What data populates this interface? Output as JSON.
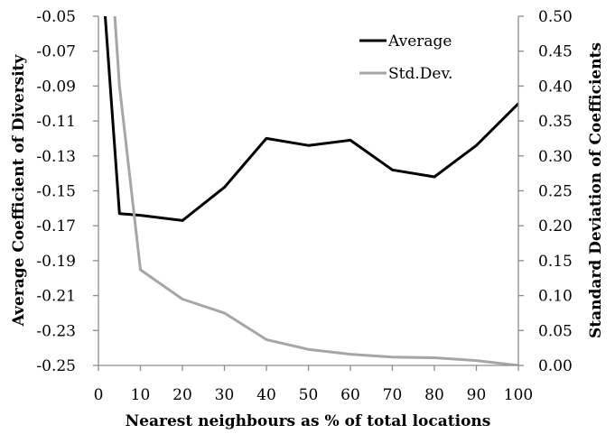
{
  "chart_data": {
    "type": "line",
    "xlabel": "Nearest neighbours as % of total locations",
    "ylabel": "Average Coefficient of Diversity",
    "y2label": "Standard Deviation of Coefficients",
    "x_ticks": [
      "0",
      "10",
      "20",
      "30",
      "40",
      "50",
      "60",
      "70",
      "80",
      "90",
      "100"
    ],
    "y_ticks": [
      "-0.05",
      "-0.07",
      "-0.09",
      "-0.11",
      "-0.13",
      "-0.15",
      "-0.17",
      "-0.19",
      "-0.21",
      "-0.23",
      "-0.25"
    ],
    "y2_ticks": [
      "0.50",
      "0.45",
      "0.40",
      "0.35",
      "0.30",
      "0.25",
      "0.20",
      "0.15",
      "0.10",
      "0.05",
      "0.00"
    ],
    "xlim": [
      0,
      100
    ],
    "ylim": [
      -0.25,
      -0.05
    ],
    "y2lim": [
      0,
      0.5
    ],
    "grid": false,
    "legend": "top-right",
    "series": [
      {
        "name": "Average",
        "axis": "left",
        "color": "#000000",
        "x": [
          1,
          5,
          10,
          20,
          30,
          40,
          50,
          60,
          70,
          80,
          90,
          100
        ],
        "values": [
          -0.03,
          -0.163,
          -0.164,
          -0.167,
          -0.148,
          -0.12,
          -0.124,
          -0.121,
          -0.138,
          -0.142,
          -0.124,
          -0.1
        ]
      },
      {
        "name": "Std.Dev.",
        "axis": "right",
        "color": "#a6a6a6",
        "x": [
          3,
          5,
          10,
          20,
          30,
          40,
          50,
          60,
          70,
          80,
          90,
          100
        ],
        "values": [
          0.58,
          0.4,
          0.137,
          0.095,
          0.075,
          0.037,
          0.023,
          0.016,
          0.012,
          0.011,
          0.007,
          0.0
        ]
      }
    ]
  }
}
